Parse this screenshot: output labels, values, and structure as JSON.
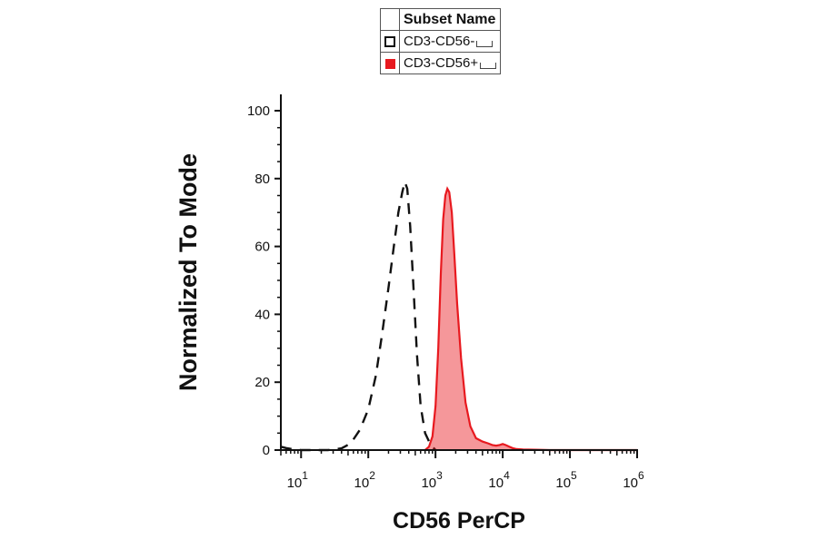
{
  "legend": {
    "header": "Subset Name",
    "items": [
      {
        "label": "CD3-CD56-",
        "style": "outline",
        "color": "#111111"
      },
      {
        "label": "CD3-CD56+",
        "style": "fill",
        "color": "#e8191f"
      }
    ]
  },
  "chart_data": {
    "type": "area",
    "xlabel": "CD56 PerCP",
    "ylabel": "Normalized To Mode",
    "x_scale": "log",
    "xlim": [
      5,
      1000000
    ],
    "ylim": [
      0,
      100
    ],
    "y_ticks": [
      0,
      20,
      40,
      60,
      80,
      100
    ],
    "x_ticks": [
      {
        "value": 10,
        "base": "10",
        "exp": "1"
      },
      {
        "value": 100,
        "base": "10",
        "exp": "2"
      },
      {
        "value": 1000,
        "base": "10",
        "exp": "3"
      },
      {
        "value": 10000,
        "base": "10",
        "exp": "4"
      },
      {
        "value": 100000,
        "base": "10",
        "exp": "5"
      },
      {
        "value": 1000000,
        "base": "10",
        "exp": "6"
      }
    ],
    "grid": false,
    "series": [
      {
        "name": "CD3-CD56-",
        "style": "dashed",
        "color": "#111111",
        "x": [
          5,
          6,
          8,
          10,
          15,
          25,
          40,
          55,
          75,
          100,
          130,
          160,
          200,
          240,
          280,
          320,
          350,
          380,
          420,
          470,
          530,
          600,
          700,
          850,
          1000
        ],
        "y": [
          1,
          0.6,
          0.2,
          0,
          0,
          0,
          0.5,
          2,
          6,
          12,
          22,
          34,
          48,
          60,
          70,
          76,
          79,
          77,
          66,
          48,
          28,
          13,
          5,
          1.5,
          0
        ]
      },
      {
        "name": "CD3-CD56+",
        "style": "filled",
        "color": "#e8191f",
        "x": [
          700,
          800,
          900,
          1000,
          1100,
          1200,
          1300,
          1400,
          1500,
          1600,
          1750,
          1900,
          2100,
          2400,
          2800,
          3300,
          4000,
          5000,
          6000,
          7000,
          8000,
          9000,
          10000,
          11000,
          12500,
          14000,
          16000,
          20000,
          30000,
          50000,
          100000,
          300000,
          1000000
        ],
        "y": [
          0,
          1,
          4,
          13,
          30,
          52,
          68,
          75,
          77,
          76,
          70,
          58,
          43,
          27,
          14,
          7,
          3.5,
          2.5,
          2,
          1.5,
          1.3,
          1.5,
          1.8,
          1.5,
          1,
          0.6,
          0.3,
          0.2,
          0.1,
          0,
          0,
          0,
          0
        ]
      }
    ]
  }
}
